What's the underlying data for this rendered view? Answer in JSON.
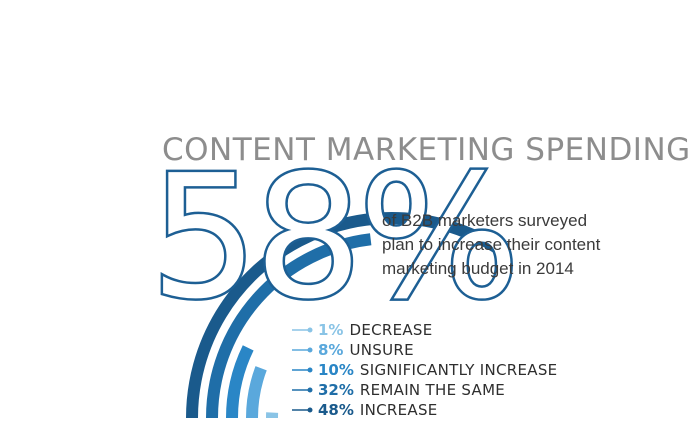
{
  "chart_data": {
    "type": "pie",
    "title": "CONTENT MARKETING SPENDING",
    "headline": {
      "value": "58%",
      "description_lines": [
        "of B2B marketers surveyed",
        "plan to increase their content",
        "marketing budget in 2014"
      ]
    },
    "series": [
      {
        "name": "DECREASE",
        "value": 1,
        "label": "1%",
        "color": "#8ac4e6"
      },
      {
        "name": "UNSURE",
        "value": 8,
        "label": "8%",
        "color": "#5aa8dc"
      },
      {
        "name": "SIGNIFICANTLY INCREASE",
        "value": 10,
        "label": "10%",
        "color": "#2a86c6"
      },
      {
        "name": "REMAIN THE SAME",
        "value": 32,
        "label": "32%",
        "color": "#1f6ea8"
      },
      {
        "name": "INCREASE",
        "value": 48,
        "label": "48%",
        "color": "#1a5a8c"
      }
    ]
  }
}
